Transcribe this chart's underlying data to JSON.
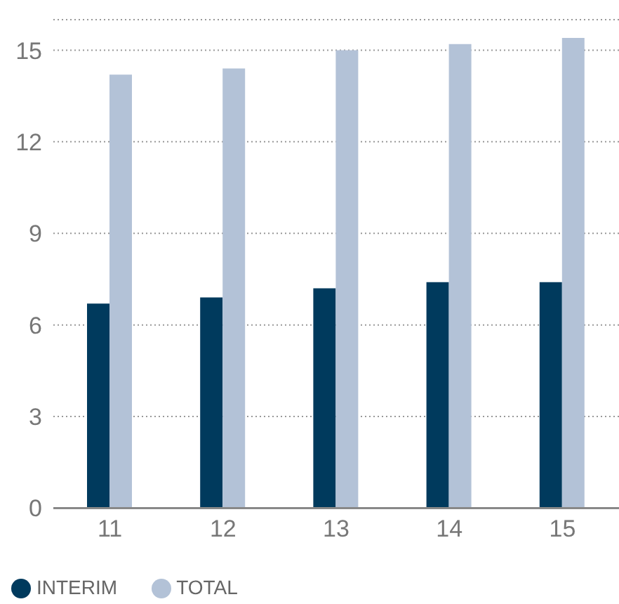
{
  "chart_data": {
    "type": "bar",
    "categories": [
      "11",
      "12",
      "13",
      "14",
      "15"
    ],
    "series": [
      {
        "name": "INTERIM",
        "color": "#003a5d",
        "values": [
          6.7,
          6.9,
          7.2,
          7.4,
          7.4
        ]
      },
      {
        "name": "TOTAL",
        "color": "#b3c2d7",
        "values": [
          14.2,
          14.4,
          15.0,
          15.2,
          15.4
        ]
      }
    ],
    "ylim": [
      0,
      16
    ],
    "yticks": [
      0,
      3,
      6,
      9,
      12,
      15
    ],
    "grid": "y",
    "legend": "bottom left"
  }
}
